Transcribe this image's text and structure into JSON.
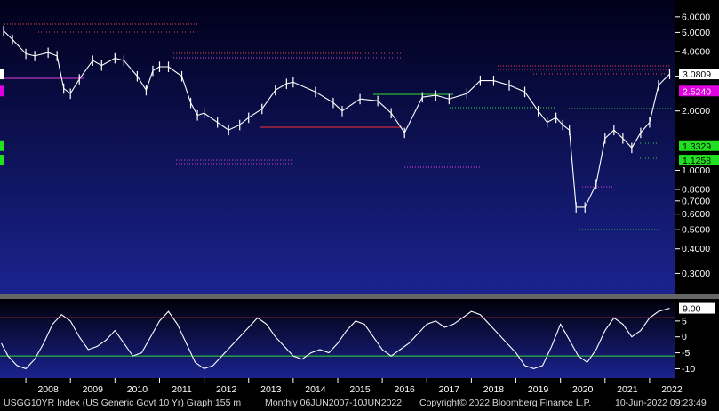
{
  "chart_data": [
    {
      "type": "line",
      "name": "price",
      "y_scale": "log",
      "ylim": [
        0.25,
        7.0
      ],
      "y_ticks": [
        0.3,
        0.4,
        0.5,
        0.6,
        0.7,
        0.8,
        1.0,
        2.0,
        3.0,
        4.0,
        5.0,
        6.0
      ],
      "y_tick_labels": [
        "0.3000",
        "0.4000",
        "0.5000",
        "0.6000",
        "0.7000",
        "0.8000",
        "1.0000",
        "2.0000",
        "3.0000",
        "4.0000",
        "5.0000",
        "6.0000"
      ],
      "x_labels": [
        "2008",
        "2009",
        "2010",
        "2011",
        "2012",
        "2013",
        "2014",
        "2015",
        "2016",
        "2017",
        "2018",
        "2019",
        "2020",
        "2021",
        "2022"
      ],
      "x": [
        2007.5,
        2007.7,
        2008.0,
        2008.2,
        2008.5,
        2008.7,
        2008.85,
        2009.0,
        2009.2,
        2009.5,
        2009.7,
        2010.0,
        2010.2,
        2010.5,
        2010.7,
        2010.85,
        2011.0,
        2011.2,
        2011.5,
        2011.7,
        2011.85,
        2012.0,
        2012.3,
        2012.55,
        2012.8,
        2013.0,
        2013.3,
        2013.6,
        2013.85,
        2014.0,
        2014.5,
        2014.9,
        2015.1,
        2015.5,
        2015.9,
        2016.2,
        2016.5,
        2016.9,
        2017.2,
        2017.5,
        2017.9,
        2018.2,
        2018.5,
        2018.85,
        2019.2,
        2019.5,
        2019.7,
        2019.9,
        2020.05,
        2020.2,
        2020.35,
        2020.55,
        2020.8,
        2021.0,
        2021.2,
        2021.4,
        2021.6,
        2021.8,
        2022.0,
        2022.2,
        2022.45
      ],
      "y": [
        5.1,
        4.6,
        3.9,
        3.8,
        3.95,
        3.8,
        2.6,
        2.45,
        2.9,
        3.6,
        3.4,
        3.7,
        3.6,
        3.0,
        2.55,
        3.2,
        3.35,
        3.35,
        3.0,
        2.2,
        1.9,
        1.95,
        1.75,
        1.6,
        1.7,
        1.85,
        2.05,
        2.55,
        2.75,
        2.8,
        2.5,
        2.2,
        2.0,
        2.3,
        2.25,
        1.95,
        1.55,
        2.35,
        2.4,
        2.3,
        2.45,
        2.85,
        2.85,
        2.7,
        2.5,
        2.0,
        1.75,
        1.85,
        1.7,
        1.6,
        0.65,
        0.65,
        0.85,
        1.45,
        1.6,
        1.45,
        1.3,
        1.55,
        1.75,
        2.7,
        3.08
      ],
      "price_labels": [
        {
          "text": "3.0809",
          "y": 3.0809,
          "color": "#ffffff",
          "text_color": "#000000"
        },
        {
          "text": "2.5240",
          "y": 2.524,
          "color": "#e000e0",
          "text_color": "#ffffff"
        },
        {
          "text": "1.3329",
          "y": 1.3329,
          "color": "#20e020",
          "text_color": "#000000"
        },
        {
          "text": "1.1258",
          "y": 1.1258,
          "color": "#20e020",
          "text_color": "#000000"
        }
      ],
      "bg_colors": [
        "#1a238f",
        "#000010"
      ],
      "grid": false
    },
    {
      "type": "line",
      "name": "oscillator",
      "ylim": [
        -11,
        10
      ],
      "y_ticks": [
        5,
        0,
        -5,
        -10
      ],
      "y_tick_labels": [
        "5",
        "0",
        "-5",
        "-10"
      ],
      "reference_lines": [
        {
          "y": 6,
          "color": "#ff3333"
        },
        {
          "y": -6,
          "color": "#33dd33"
        }
      ],
      "x": [
        2007.45,
        2007.6,
        2007.8,
        2008.0,
        2008.2,
        2008.4,
        2008.6,
        2008.8,
        2009.0,
        2009.2,
        2009.4,
        2009.6,
        2009.8,
        2010.0,
        2010.2,
        2010.4,
        2010.6,
        2010.8,
        2011.0,
        2011.2,
        2011.4,
        2011.6,
        2011.8,
        2012.0,
        2012.2,
        2012.4,
        2012.6,
        2012.8,
        2013.0,
        2013.2,
        2013.4,
        2013.6,
        2013.8,
        2014.0,
        2014.2,
        2014.4,
        2014.6,
        2014.8,
        2015.0,
        2015.2,
        2015.4,
        2015.6,
        2015.8,
        2016.0,
        2016.2,
        2016.4,
        2016.6,
        2016.8,
        2017.0,
        2017.2,
        2017.4,
        2017.6,
        2017.8,
        2018.0,
        2018.2,
        2018.4,
        2018.6,
        2018.8,
        2019.0,
        2019.2,
        2019.4,
        2019.6,
        2019.8,
        2020.0,
        2020.2,
        2020.4,
        2020.6,
        2020.8,
        2021.0,
        2021.2,
        2021.4,
        2021.6,
        2021.8,
        2022.0,
        2022.2,
        2022.45
      ],
      "y": [
        -2,
        -6,
        -9,
        -10,
        -7,
        -2,
        4,
        7,
        5,
        0,
        -4,
        -3,
        -1,
        2,
        -2,
        -6,
        -5,
        0,
        5,
        8,
        4,
        -2,
        -8,
        -10,
        -9,
        -6,
        -3,
        0,
        3,
        6,
        4,
        0,
        -3,
        -6,
        -7,
        -5,
        -4,
        -5,
        -2,
        2,
        5,
        4,
        0,
        -4,
        -6,
        -4,
        -2,
        1,
        4,
        5,
        3,
        4,
        6,
        8,
        7,
        4,
        1,
        -2,
        -5,
        -9,
        -10,
        -9,
        -3,
        4,
        -1,
        -6,
        -8,
        -4,
        2,
        6,
        4,
        0,
        2,
        6,
        8,
        9
      ],
      "current_label": "9.00"
    }
  ],
  "footer": {
    "ticker": "USGG10YR Index (US Generic Govt 10 Yr) Graph 155 m",
    "range": "Monthly 06JUN2007-10JUN2022",
    "copyright": "Copyright© 2022 Bloomberg Finance L.P.",
    "timestamp": "10-Jun-2022 09:23:49"
  }
}
